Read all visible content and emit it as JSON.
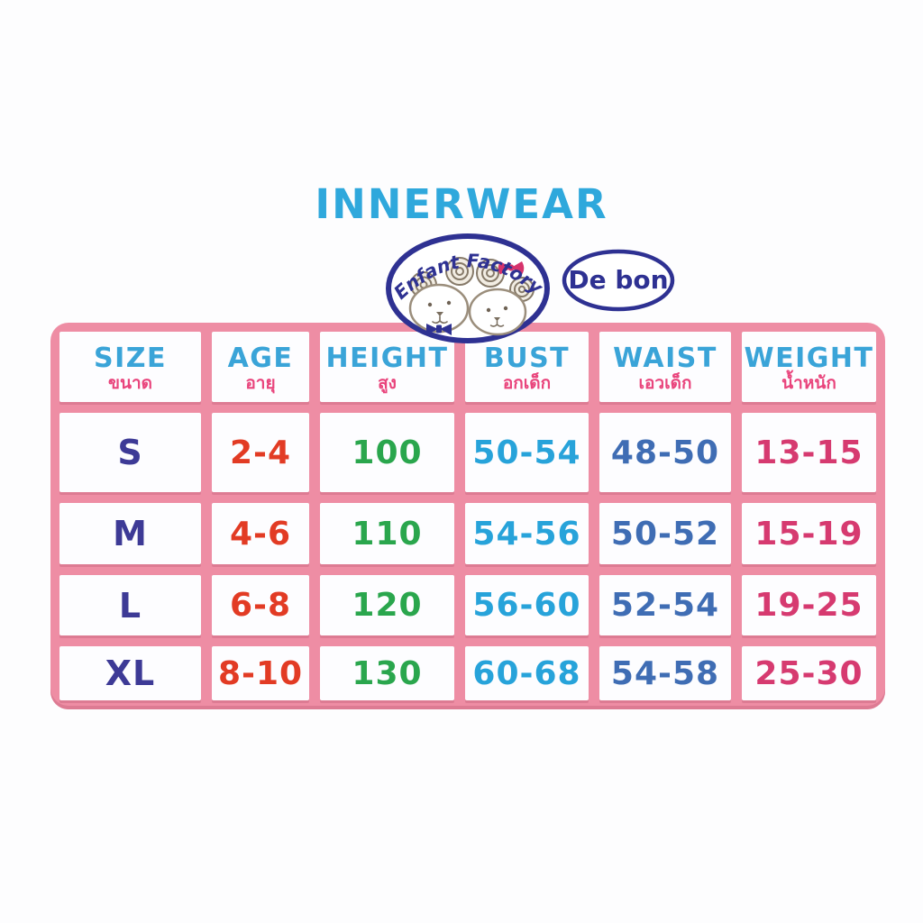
{
  "page": {
    "title": "INNERWEAR",
    "title_color": "#2fa8dc",
    "background_color": "#fdfdfe"
  },
  "logos": {
    "enfant_factory": {
      "text": "Enfant Factory",
      "outline_color": "#2e3192",
      "bear_outline_color": "#9b8e7c",
      "rose_outline_color": "#867a69",
      "bow_color": "#d6336c",
      "bowtie_color": "#2e3192"
    },
    "de_bon": {
      "text": "De bon",
      "outline_color": "#2e3192",
      "text_color": "#2e3192"
    }
  },
  "size_table": {
    "grid_color": "#ee8da4",
    "grid_shadow_color": "#dd7b93",
    "cell_background": "#fdfdff",
    "header_label_color": "#3aa4d8",
    "header_sublabel_color": "#e9447c",
    "columns": [
      {
        "key": "size",
        "label": "SIZE",
        "sublabel": "ขนาด",
        "value_color": "#3d3a96"
      },
      {
        "key": "age",
        "label": "AGE",
        "sublabel": "อายุ",
        "value_color": "#e23b24"
      },
      {
        "key": "height",
        "label": "HEIGHT",
        "sublabel": "สูง",
        "value_color": "#2aa64d"
      },
      {
        "key": "bust",
        "label": "BUST",
        "sublabel": "อกเด็ก",
        "value_color": "#27a3da"
      },
      {
        "key": "waist",
        "label": "WAIST",
        "sublabel": "เอวเด็ก",
        "value_color": "#3f6db4"
      },
      {
        "key": "weight",
        "label": "WEIGHT",
        "sublabel": "น้ำหนัก",
        "value_color": "#d63a70"
      }
    ],
    "rows": [
      {
        "size": "S",
        "age": "2-4",
        "height": "100",
        "bust": "50-54",
        "waist": "48-50",
        "weight": "13-15"
      },
      {
        "size": "M",
        "age": "4-6",
        "height": "110",
        "bust": "54-56",
        "waist": "50-52",
        "weight": "15-19"
      },
      {
        "size": "L",
        "age": "6-8",
        "height": "120",
        "bust": "56-60",
        "waist": "52-54",
        "weight": "19-25"
      },
      {
        "size": "XL",
        "age": "8-10",
        "height": "130",
        "bust": "60-68",
        "waist": "54-58",
        "weight": "25-30"
      }
    ]
  }
}
